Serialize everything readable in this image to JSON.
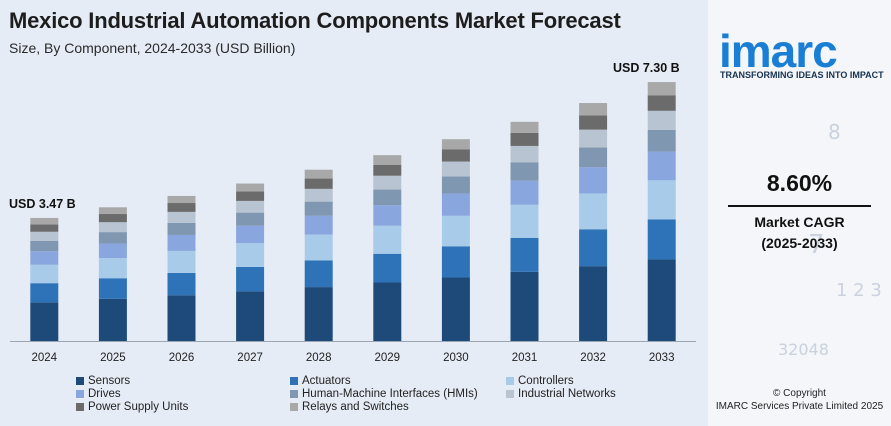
{
  "chart_data": {
    "type": "bar",
    "stacked": true,
    "title": "Mexico Industrial Automation Components Market Forecast",
    "subtitle": "Size, By Component, 2024-2033 (USD Billion)",
    "categories": [
      "2024",
      "2025",
      "2026",
      "2027",
      "2028",
      "2029",
      "2030",
      "2031",
      "2032",
      "2033"
    ],
    "totals": [
      3.47,
      3.77,
      4.09,
      4.44,
      4.83,
      5.24,
      5.69,
      6.18,
      6.71,
      7.3
    ],
    "ylim": [
      0,
      7.5
    ],
    "grid": false,
    "legend_position": "bottom",
    "series": [
      {
        "name": "Sensors",
        "color": "#1e4a7a",
        "values": [
          1.09,
          1.19,
          1.29,
          1.4,
          1.52,
          1.65,
          1.79,
          1.95,
          2.11,
          2.3
        ]
      },
      {
        "name": "Actuators",
        "color": "#2e73b8",
        "values": [
          0.54,
          0.58,
          0.63,
          0.69,
          0.75,
          0.81,
          0.88,
          0.96,
          1.04,
          1.13
        ]
      },
      {
        "name": "Controllers",
        "color": "#a9cbea",
        "values": [
          0.52,
          0.57,
          0.62,
          0.67,
          0.73,
          0.79,
          0.86,
          0.93,
          1.01,
          1.1
        ]
      },
      {
        "name": "Drives",
        "color": "#8aa6de",
        "values": [
          0.38,
          0.41,
          0.45,
          0.49,
          0.53,
          0.58,
          0.63,
          0.68,
          0.74,
          0.81
        ]
      },
      {
        "name": "Human-Machine Interfaces (HMIs)",
        "color": "#7f97b0",
        "values": [
          0.29,
          0.32,
          0.34,
          0.37,
          0.4,
          0.44,
          0.48,
          0.52,
          0.56,
          0.61
        ]
      },
      {
        "name": "Industrial Networks",
        "color": "#b8c4d1",
        "values": [
          0.26,
          0.28,
          0.31,
          0.33,
          0.36,
          0.39,
          0.42,
          0.46,
          0.5,
          0.54
        ]
      },
      {
        "name": "Power Supply Units",
        "color": "#6b6b6b",
        "values": [
          0.21,
          0.23,
          0.25,
          0.27,
          0.29,
          0.31,
          0.34,
          0.37,
          0.4,
          0.44
        ]
      },
      {
        "name": "Relays and Switches",
        "color": "#a8a8a8",
        "values": [
          0.18,
          0.19,
          0.2,
          0.22,
          0.25,
          0.27,
          0.29,
          0.31,
          0.35,
          0.37
        ]
      }
    ],
    "annotations": [
      {
        "category": "2024",
        "text": "USD 3.47 B"
      },
      {
        "category": "2033",
        "text": "USD 7.30 B"
      }
    ]
  },
  "brand": {
    "logo_text": "imarc",
    "tagline": "TRANSFORMING IDEAS INTO IMPACT",
    "primary_color": "#1a7fd4",
    "accent_color": "#f28c28"
  },
  "cagr": {
    "value": "8.60%",
    "label": "Market CAGR",
    "period": "(2025-2033)"
  },
  "footer": {
    "copyright": "© Copyright",
    "company": "IMARC Services Private Limited 2025"
  }
}
